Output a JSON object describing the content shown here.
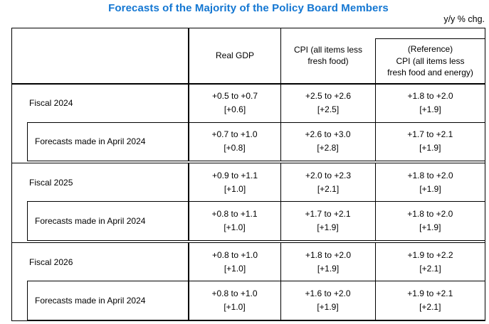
{
  "title": "Forecasts of the Majority of the Policy Board Members",
  "unit_label": "y/y % chg.",
  "colors": {
    "title_accent": "#1477d2",
    "border": "#000000",
    "text": "#000000"
  },
  "header": {
    "real_gdp": "Real GDP",
    "cpi_line1": "CPI (all items less",
    "cpi_line2": "fresh food)",
    "ref_line1": "(Reference)",
    "ref_line2": "CPI (all items less",
    "ref_line3": "fresh food and energy)"
  },
  "sections": [
    {
      "fiscal": {
        "label": "Fiscal 2024",
        "gdp_range": "+0.5 to +0.7",
        "gdp_median": "[+0.6]",
        "cpi_range": "+2.5 to +2.6",
        "cpi_median": "[+2.5]",
        "ref_range": "+1.8 to +2.0",
        "ref_median": "[+1.9]"
      },
      "april": {
        "label": "Forecasts made in April 2024",
        "gdp_range": "+0.7 to +1.0",
        "gdp_median": "[+0.8]",
        "cpi_range": "+2.6 to +3.0",
        "cpi_median": "[+2.8]",
        "ref_range": "+1.7 to +2.1",
        "ref_median": "[+1.9]"
      }
    },
    {
      "fiscal": {
        "label": "Fiscal 2025",
        "gdp_range": "+0.9 to +1.1",
        "gdp_median": "[+1.0]",
        "cpi_range": "+2.0 to +2.3",
        "cpi_median": "[+2.1]",
        "ref_range": "+1.8 to +2.0",
        "ref_median": "[+1.9]"
      },
      "april": {
        "label": "Forecasts made in April 2024",
        "gdp_range": "+0.8 to +1.1",
        "gdp_median": "[+1.0]",
        "cpi_range": "+1.7 to +2.1",
        "cpi_median": "[+1.9]",
        "ref_range": "+1.8 to +2.0",
        "ref_median": "[+1.9]"
      }
    },
    {
      "fiscal": {
        "label": "Fiscal 2026",
        "gdp_range": "+0.8 to +1.0",
        "gdp_median": "[+1.0]",
        "cpi_range": "+1.8 to +2.0",
        "cpi_median": "[+1.9]",
        "ref_range": "+1.9 to +2.2",
        "ref_median": "[+2.1]"
      },
      "april": {
        "label": "Forecasts made in April 2024",
        "gdp_range": "+0.8 to +1.0",
        "gdp_median": "[+1.0]",
        "cpi_range": "+1.6 to +2.0",
        "cpi_median": "[+1.9]",
        "ref_range": "+1.9 to +2.1",
        "ref_median": "[+2.1]"
      }
    }
  ]
}
